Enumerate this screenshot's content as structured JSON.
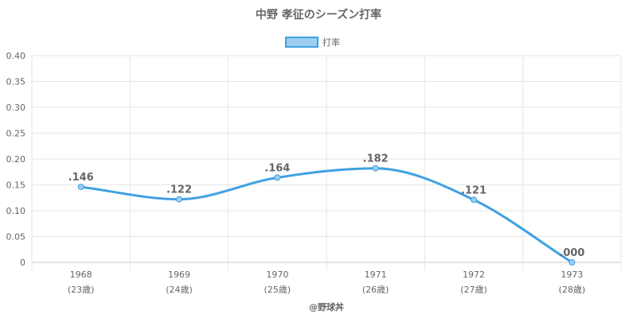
{
  "chart_data": {
    "type": "line",
    "title": "中野 孝征のシーズン打率",
    "categories": [
      "1968",
      "1969",
      "1970",
      "1971",
      "1972",
      "1973"
    ],
    "category_sublabels": [
      "(23歳)",
      "(24歳)",
      "(25歳)",
      "(26歳)",
      "(27歳)",
      "(28歳)"
    ],
    "series": [
      {
        "name": "打率",
        "values": [
          0.146,
          0.122,
          0.164,
          0.182,
          0.121,
          0.0
        ],
        "data_labels": [
          ".146",
          ".122",
          ".164",
          ".182",
          ".121",
          ".000"
        ],
        "color": "#3fa1e2",
        "fill": "#9ccdf0"
      }
    ],
    "ylim": [
      0,
      0.4
    ],
    "yticks": [
      "0",
      "0.05",
      "0.10",
      "0.15",
      "0.20",
      "0.25",
      "0.30",
      "0.35",
      "0.40"
    ],
    "grid": true,
    "legend_position": "top"
  },
  "credit": "@野球丼"
}
